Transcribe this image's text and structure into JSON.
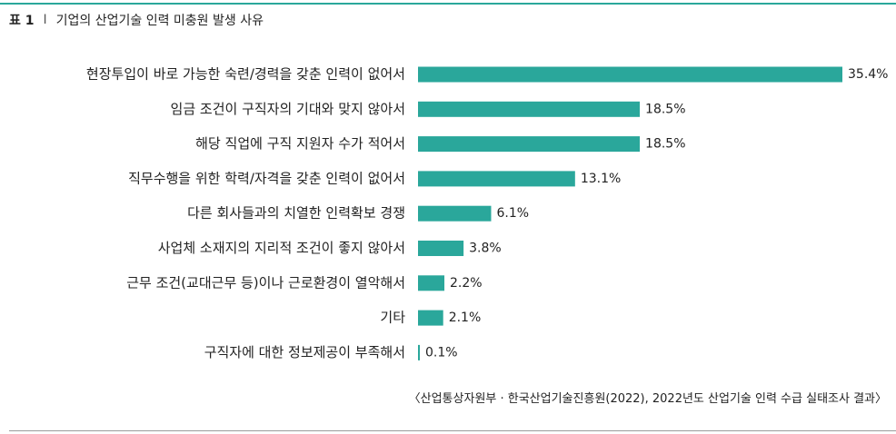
{
  "header": {
    "table_number": "표 1",
    "separator": "I",
    "title": "기업의 산업기술 인력 미충원 발생 사유"
  },
  "chart_data": {
    "type": "bar",
    "orientation": "horizontal",
    "categories": [
      "현장투입이 바로 가능한 숙련/경력을 갖춘 인력이 없어서",
      "임금 조건이 구직자의 기대와 맞지 않아서",
      "해당 직업에 구직 지원자 수가 적어서",
      "직무수행을 위한 학력/자격을 갖춘 인력이 없어서",
      "다른 회사들과의 치열한 인력확보 경쟁",
      "사업체 소재지의 지리적 조건이 좋지 않아서",
      "근무 조건(교대근무 등)이나 근로환경이 열악해서",
      "기타",
      "구직자에 대한 정보제공이 부족해서"
    ],
    "values": [
      35.4,
      18.5,
      18.5,
      13.1,
      6.1,
      3.8,
      2.2,
      2.1,
      0.1
    ],
    "value_labels": [
      "35.4%",
      "18.5%",
      "18.5%",
      "13.1%",
      "6.1%",
      "3.8%",
      "2.2%",
      "2.1%",
      "0.1%"
    ],
    "xlim": [
      0,
      35.4
    ],
    "grid": false,
    "legend": "none",
    "bar_color": "#2aa79b"
  },
  "footer": {
    "source": "〈산업통상자원부 · 한국산업기술진흥원(2022), 2022년도 산업기술 인력 수급 실태조사 결과〉"
  },
  "colors": {
    "accent": "#2aa79b",
    "rule": "#9a9a9a",
    "text": "#222222"
  }
}
